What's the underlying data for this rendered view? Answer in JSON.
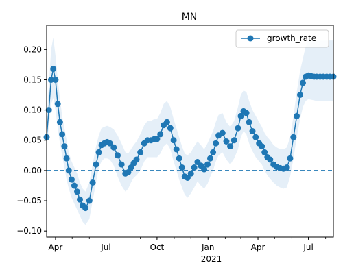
{
  "chart_data": {
    "type": "line",
    "title": "MN",
    "xlabel": "",
    "ylabel": "",
    "x_range": [
      "2020-03-16",
      "2021-08-15"
    ],
    "ylim": [
      -0.11,
      0.24
    ],
    "yticks": [
      -0.1,
      -0.05,
      0.0,
      0.05,
      0.1,
      0.15,
      0.2
    ],
    "ytick_labels": [
      "−0.10",
      "−0.05",
      "0.00",
      "0.05",
      "0.10",
      "0.15",
      "0.20"
    ],
    "xticks": [
      {
        "date": "2020-04-01",
        "label": "Apr"
      },
      {
        "date": "2020-07-01",
        "label": "Jul"
      },
      {
        "date": "2020-10-01",
        "label": "Oct"
      },
      {
        "date": "2021-01-01",
        "label": "Jan"
      },
      {
        "date": "2021-04-01",
        "label": "Apr"
      },
      {
        "date": "2021-07-01",
        "label": "Jul"
      }
    ],
    "year_label": "2021",
    "grid": false,
    "legend": {
      "position": "top-right",
      "entries": [
        "growth_rate"
      ]
    },
    "reference_line": {
      "y": 0.0,
      "style": "dashed"
    },
    "series": [
      {
        "name": "growth_rate",
        "color": "#1f77b4",
        "band_color": "#c6dbef",
        "x": [
          "2020-03-16",
          "2020-03-20",
          "2020-03-24",
          "2020-03-28",
          "2020-04-01",
          "2020-04-05",
          "2020-04-09",
          "2020-04-13",
          "2020-04-17",
          "2020-04-21",
          "2020-04-25",
          "2020-04-30",
          "2020-05-05",
          "2020-05-10",
          "2020-05-15",
          "2020-05-20",
          "2020-05-25",
          "2020-06-01",
          "2020-06-07",
          "2020-06-13",
          "2020-06-18",
          "2020-06-23",
          "2020-06-28",
          "2020-07-03",
          "2020-07-08",
          "2020-07-15",
          "2020-07-22",
          "2020-07-29",
          "2020-08-05",
          "2020-08-10",
          "2020-08-15",
          "2020-08-20",
          "2020-08-25",
          "2020-09-01",
          "2020-09-08",
          "2020-09-14",
          "2020-09-20",
          "2020-09-26",
          "2020-10-01",
          "2020-10-07",
          "2020-10-13",
          "2020-10-19",
          "2020-10-25",
          "2020-10-31",
          "2020-11-05",
          "2020-11-10",
          "2020-11-15",
          "2020-11-20",
          "2020-11-25",
          "2020-12-01",
          "2020-12-07",
          "2020-12-13",
          "2020-12-19",
          "2020-12-25",
          "2020-12-31",
          "2021-01-05",
          "2021-01-10",
          "2021-01-15",
          "2021-01-20",
          "2021-01-27",
          "2021-02-03",
          "2021-02-10",
          "2021-02-17",
          "2021-02-24",
          "2021-03-01",
          "2021-03-06",
          "2021-03-11",
          "2021-03-16",
          "2021-03-22",
          "2021-03-28",
          "2021-04-03",
          "2021-04-08",
          "2021-04-13",
          "2021-04-18",
          "2021-04-23",
          "2021-04-29",
          "2021-05-05",
          "2021-05-11",
          "2021-05-17",
          "2021-05-23",
          "2021-05-29",
          "2021-06-04",
          "2021-06-10",
          "2021-06-16",
          "2021-06-21",
          "2021-06-26",
          "2021-07-01",
          "2021-07-06",
          "2021-07-11",
          "2021-07-16",
          "2021-07-22",
          "2021-07-28",
          "2021-08-03",
          "2021-08-09",
          "2021-08-15"
        ],
        "y": [
          0.055,
          0.1,
          0.15,
          0.168,
          0.15,
          0.11,
          0.08,
          0.06,
          0.04,
          0.02,
          0.0,
          -0.015,
          -0.025,
          -0.035,
          -0.048,
          -0.058,
          -0.062,
          -0.05,
          -0.02,
          0.01,
          0.03,
          0.042,
          0.045,
          0.047,
          0.045,
          0.038,
          0.025,
          0.01,
          -0.005,
          -0.003,
          0.005,
          0.012,
          0.018,
          0.03,
          0.045,
          0.05,
          0.05,
          0.052,
          0.052,
          0.06,
          0.075,
          0.08,
          0.07,
          0.05,
          0.035,
          0.02,
          0.005,
          -0.01,
          -0.012,
          -0.005,
          0.005,
          0.014,
          0.008,
          0.002,
          0.01,
          0.02,
          0.03,
          0.045,
          0.058,
          0.062,
          0.048,
          0.04,
          0.05,
          0.07,
          0.09,
          0.098,
          0.095,
          0.08,
          0.065,
          0.055,
          0.045,
          0.04,
          0.03,
          0.022,
          0.018,
          0.01,
          0.006,
          0.004,
          0.003,
          0.005,
          0.02,
          0.055,
          0.09,
          0.125,
          0.145,
          0.155,
          0.157,
          0.156,
          0.155,
          0.155,
          0.155,
          0.155,
          0.155,
          0.155,
          0.155
        ],
        "lower": [
          0.04,
          0.07,
          0.11,
          0.12,
          0.1,
          0.07,
          0.045,
          0.025,
          0.005,
          -0.015,
          -0.03,
          -0.045,
          -0.055,
          -0.065,
          -0.075,
          -0.085,
          -0.09,
          -0.08,
          -0.05,
          -0.02,
          0.005,
          0.015,
          0.02,
          0.02,
          0.018,
          0.008,
          -0.01,
          -0.025,
          -0.035,
          -0.03,
          -0.02,
          -0.012,
          -0.008,
          0.0,
          0.015,
          0.022,
          0.022,
          0.022,
          0.022,
          0.028,
          0.04,
          0.045,
          0.035,
          0.015,
          0.0,
          -0.015,
          -0.028,
          -0.04,
          -0.045,
          -0.038,
          -0.028,
          -0.018,
          -0.025,
          -0.03,
          -0.022,
          -0.01,
          0.0,
          0.015,
          0.025,
          0.03,
          0.018,
          0.01,
          0.02,
          0.035,
          0.055,
          0.065,
          0.06,
          0.045,
          0.032,
          0.022,
          0.015,
          0.01,
          0.0,
          -0.008,
          -0.014,
          -0.02,
          -0.025,
          -0.028,
          -0.03,
          -0.028,
          -0.01,
          0.02,
          0.055,
          0.085,
          0.105,
          0.115,
          0.118,
          0.117,
          0.116,
          0.115,
          0.115,
          0.115,
          0.115,
          0.115,
          0.115
        ],
        "upper": [
          0.08,
          0.14,
          0.2,
          0.22,
          0.19,
          0.15,
          0.12,
          0.09,
          0.07,
          0.05,
          0.03,
          0.015,
          0.005,
          -0.005,
          -0.02,
          -0.03,
          -0.035,
          -0.02,
          0.01,
          0.04,
          0.058,
          0.07,
          0.072,
          0.074,
          0.072,
          0.068,
          0.058,
          0.045,
          0.03,
          0.028,
          0.035,
          0.042,
          0.048,
          0.06,
          0.075,
          0.082,
          0.082,
          0.085,
          0.085,
          0.095,
          0.11,
          0.115,
          0.105,
          0.085,
          0.07,
          0.055,
          0.04,
          0.028,
          0.025,
          0.03,
          0.04,
          0.048,
          0.042,
          0.035,
          0.045,
          0.055,
          0.065,
          0.08,
          0.092,
          0.095,
          0.08,
          0.072,
          0.082,
          0.105,
          0.125,
          0.132,
          0.13,
          0.115,
          0.1,
          0.09,
          0.08,
          0.072,
          0.062,
          0.055,
          0.05,
          0.042,
          0.038,
          0.035,
          0.035,
          0.038,
          0.055,
          0.09,
          0.13,
          0.165,
          0.185,
          0.205,
          0.215,
          0.215,
          0.215,
          0.215,
          0.215,
          0.215,
          0.215,
          0.215,
          0.215
        ]
      }
    ]
  }
}
